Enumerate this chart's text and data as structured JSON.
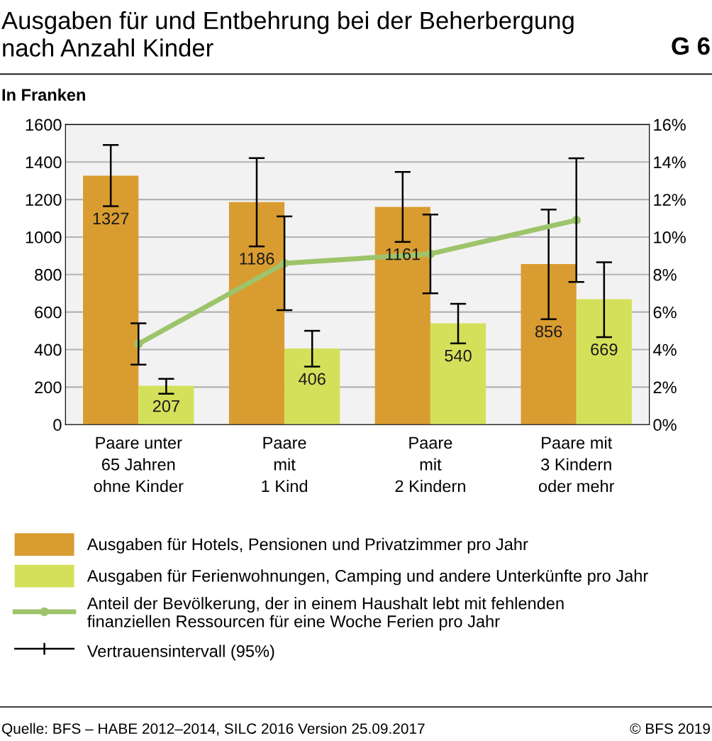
{
  "chart_data": {
    "type": "bar",
    "title": "Ausgaben für und Entbehrung bei der Beherbergung\nnach Anzahl Kinder",
    "ylabel": "In Franken",
    "categories": [
      "Paare unter\n65 Jahren\nohne Kinder",
      "Paare\nmit\n1 Kind",
      "Paare\nmit\n2 Kindern",
      "Paare mit\n3 Kindern\noder mehr"
    ],
    "series": [
      {
        "name": "Ausgaben für Hotels, Pensionen und Privatzimmer pro Jahr",
        "color": "#d99c30",
        "values": [
          1327,
          1186,
          1161,
          856
        ],
        "errors": [
          [
            1164,
            1491
          ],
          [
            950,
            1421
          ],
          [
            974,
            1347
          ],
          [
            562,
            1146
          ]
        ]
      },
      {
        "name": "Ausgaben für Ferienwohnungen, Camping und andere Unterkünfte pro Jahr",
        "color": "#d5e05a",
        "values": [
          207,
          406,
          540,
          669
        ],
        "errors": [
          [
            164,
            244
          ],
          [
            309,
            500
          ],
          [
            433,
            644
          ],
          [
            466,
            865
          ]
        ]
      },
      {
        "name": "Anteil der Bevölkerung, der in einem Haushalt lebt mit fehlenden\nfinanziellen Ressourcen für eine Woche Ferien pro Jahr",
        "type": "line",
        "axis": "y2",
        "color": "#9dc46b",
        "marker": "circle",
        "values": [
          4.3,
          8.6,
          9.1,
          10.9
        ],
        "errors": [
          [
            3.2,
            5.4
          ],
          [
            6.1,
            11.1
          ],
          [
            7.0,
            11.2
          ],
          [
            7.6,
            14.2
          ]
        ]
      }
    ],
    "ylim": [
      0,
      1600
    ],
    "yticks": [
      0,
      200,
      400,
      600,
      800,
      1000,
      1200,
      1400,
      1600
    ],
    "y2lim": [
      0,
      16
    ],
    "y2ticks": [
      {
        "value": 0,
        "label": "0%"
      },
      {
        "value": 2,
        "label": "2%"
      },
      {
        "value": 4,
        "label": "4%"
      },
      {
        "value": 6,
        "label": "6%"
      },
      {
        "value": 8,
        "label": "8%"
      },
      {
        "value": 10,
        "label": "10%"
      },
      {
        "value": 12,
        "label": "12%"
      },
      {
        "value": 14,
        "label": "14%"
      },
      {
        "value": 16,
        "label": "16%"
      }
    ],
    "value_labels": [
      "1327",
      "1186",
      "1161",
      "856",
      "207",
      "406",
      "540",
      "669"
    ],
    "grid": "y",
    "legend": "bottom",
    "annotations": [
      "G 6",
      "Vertrauensintervall (95%)",
      "Quelle: BFS – HABE 2012–2014, SILC 2016 Version 25.09.2017",
      "© BFS 2019"
    ]
  }
}
